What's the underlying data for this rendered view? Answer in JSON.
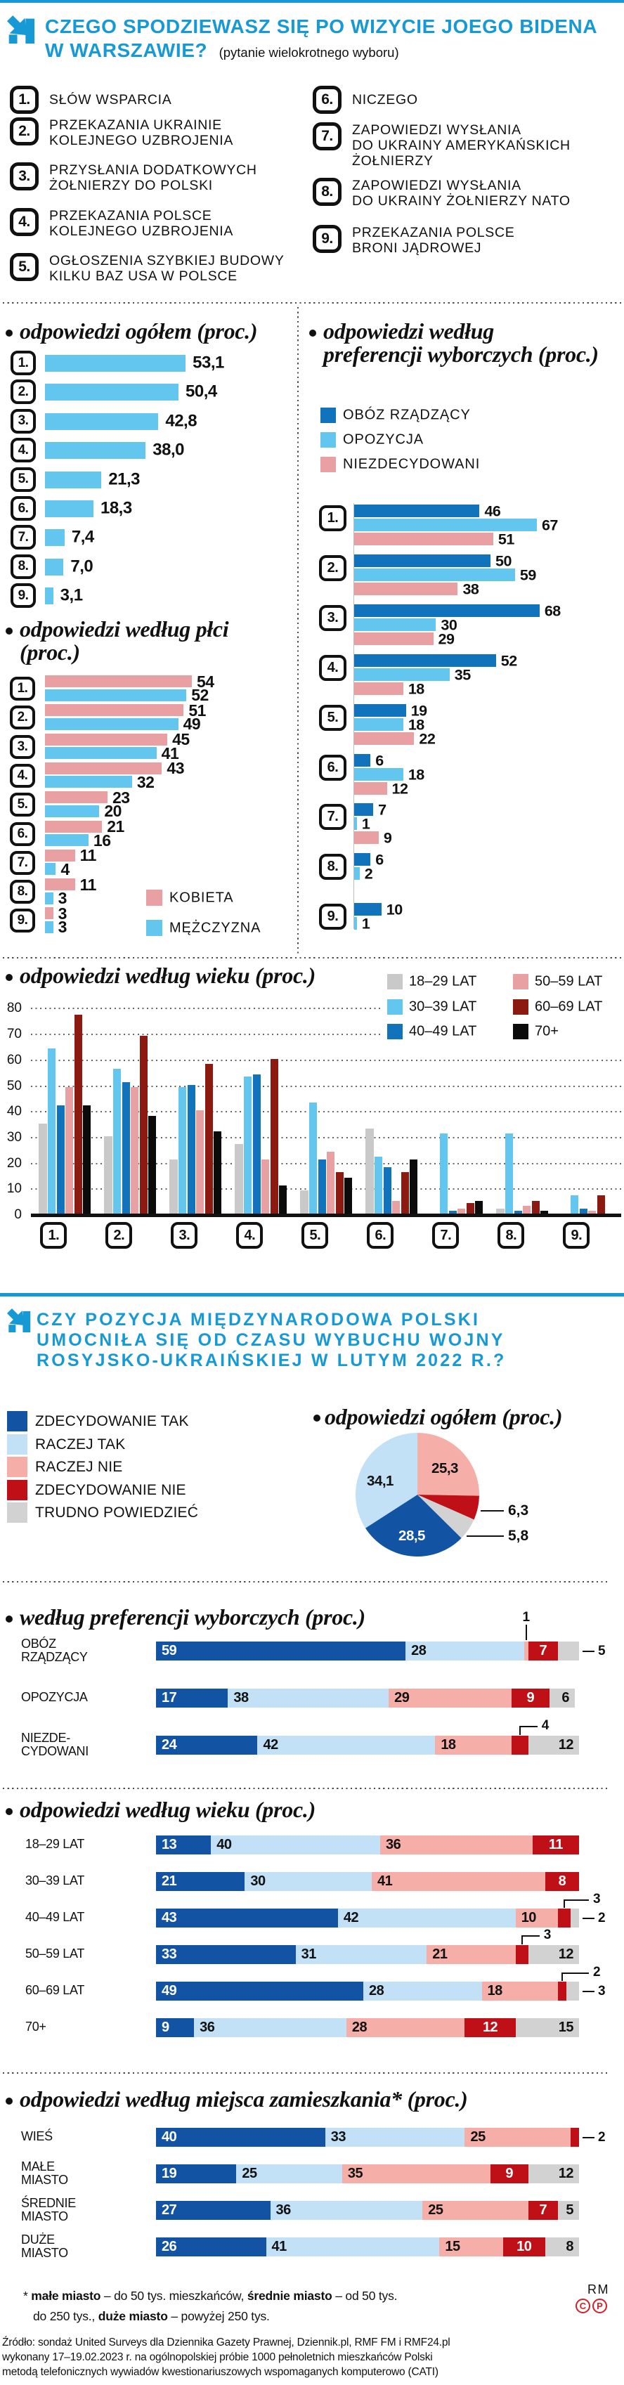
{
  "colors": {
    "brand": "#1799D6",
    "sky": "#63C6EE",
    "medblue": "#1173BB",
    "rose": "#E8A0A3",
    "navy": "#1254A3",
    "pale": "#C2E1F6",
    "salmon": "#F5AFA8",
    "red": "#BE1016",
    "maroon": "#8C1A10",
    "agegray": "#C9C9C9",
    "ltgray": "#D2D2D2",
    "black": "#0B0B0B"
  },
  "section1": {
    "title_line1": "CZEGO SPODZIEWASZ SIĘ PO WIZYCIE JOEGO BIDENA",
    "title_line2": "W WARSZAWIE?",
    "subtitle": "(pytanie wielokrotnego wyboru)",
    "options": [
      {
        "num": "1.",
        "lines": [
          "SŁÓW WSPARCIA"
        ]
      },
      {
        "num": "2.",
        "lines": [
          "PRZEKAZANIA UKRAINIE",
          "KOLEJNEGO UZBROJENIA"
        ]
      },
      {
        "num": "3.",
        "lines": [
          "PRZYSŁANIA DODATKOWYCH",
          "ŻOŁNIERZY DO POLSKI"
        ]
      },
      {
        "num": "4.",
        "lines": [
          "PRZEKAZANIA POLSCE",
          "KOLEJNEGO UZBROJENIA"
        ]
      },
      {
        "num": "5.",
        "lines": [
          "OGŁOSZENIA SZYBKIEJ BUDOWY",
          "KILKU BAZ USA W POLSCE"
        ]
      },
      {
        "num": "6.",
        "lines": [
          "NICZEGO"
        ]
      },
      {
        "num": "7.",
        "lines": [
          "ZAPOWIEDZI WYSŁANIA",
          "DO UKRAINY AMERYKAŃSKICH",
          "ŻOŁNIERZY"
        ]
      },
      {
        "num": "8.",
        "lines": [
          "ZAPOWIEDZI WYSŁANIA",
          "DO UKRAINY ŻOŁNIERZY NATO"
        ]
      },
      {
        "num": "9.",
        "lines": [
          "PRZEKAZANIA POLSCE",
          "BRONI JĄDROWEJ"
        ]
      }
    ]
  },
  "section2": {
    "title_lines": [
      "CZY POZYCJA MIĘDZYNARODOWA POLSKI",
      "UMOCNIŁA SIĘ OD CZASU WYBUCHU WOJNY",
      "ROSYJSKO-UKRAIŃSKIEJ W LUTYM 2022 R.?"
    ],
    "legend": [
      {
        "label": "ZDECYDOWANIE TAK",
        "color": "navy"
      },
      {
        "label": "RACZEJ TAK",
        "color": "pale"
      },
      {
        "label": "RACZEJ NIE",
        "color": "salmon"
      },
      {
        "label": "ZDECYDOWANIE NIE",
        "color": "red"
      },
      {
        "label": "TRUDNO POWIEDZIEĆ",
        "color": "ltgray"
      }
    ]
  },
  "chart_data": [
    {
      "id": "ogolem",
      "type": "bar",
      "orientation": "horizontal",
      "title": "odpowiedzi ogółem (proc.)",
      "categories": [
        "1.",
        "2.",
        "3.",
        "4.",
        "5.",
        "6.",
        "7.",
        "8.",
        "9."
      ],
      "values": [
        53.1,
        50.4,
        42.8,
        38.0,
        21.3,
        18.3,
        7.4,
        7.0,
        3.1
      ],
      "value_labels": [
        "53,1",
        "50,4",
        "42,8",
        "38,0",
        "21,3",
        "18,3",
        "7,4",
        "7,0",
        "3,1"
      ],
      "bar_color": "sky"
    },
    {
      "id": "plec",
      "type": "bar",
      "orientation": "horizontal",
      "title_lines": [
        "odpowiedzi według płci",
        "(proc.)"
      ],
      "categories": [
        "1.",
        "2.",
        "3.",
        "4.",
        "5.",
        "6.",
        "7.",
        "8.",
        "9."
      ],
      "series": [
        {
          "name": "KOBIETA",
          "color": "rose",
          "values": [
            54,
            51,
            45,
            43,
            23,
            21,
            11,
            11,
            3
          ]
        },
        {
          "name": "MĘŻCZYZNA",
          "color": "sky",
          "values": [
            52,
            49,
            41,
            32,
            20,
            16,
            4,
            3,
            3
          ]
        }
      ],
      "legend_position": "bottom-right"
    },
    {
      "id": "pref",
      "type": "bar",
      "orientation": "horizontal",
      "title_lines": [
        "odpowiedzi według",
        "preferencji wyborczych (proc.)"
      ],
      "categories": [
        "1.",
        "2.",
        "3.",
        "4.",
        "5.",
        "6.",
        "7.",
        "8.",
        "9."
      ],
      "series": [
        {
          "name": "OBÓZ RZĄDZĄCY",
          "color": "medblue",
          "values": [
            46,
            50,
            68,
            52,
            19,
            6,
            7,
            6,
            10
          ]
        },
        {
          "name": "OPOZYCJA",
          "color": "sky",
          "values": [
            67,
            59,
            30,
            35,
            18,
            18,
            1,
            2,
            1
          ]
        },
        {
          "name": "NIEZDECYDOWANI",
          "color": "rose",
          "values": [
            51,
            38,
            29,
            18,
            22,
            12,
            9,
            null,
            null
          ]
        }
      ],
      "legend_position": "top"
    },
    {
      "id": "wiek1",
      "type": "bar",
      "orientation": "vertical",
      "title": "odpowiedzi według wieku (proc.)",
      "categories": [
        "1.",
        "2.",
        "3.",
        "4.",
        "5.",
        "6.",
        "7.",
        "8.",
        "9."
      ],
      "ylim": [
        0,
        80
      ],
      "yticks": [
        0,
        10,
        20,
        30,
        40,
        50,
        60,
        70,
        80
      ],
      "series": [
        {
          "name": "18–29 LAT",
          "color": "agegray",
          "values": [
            35,
            30,
            21,
            27,
            9,
            33,
            0,
            2,
            0
          ]
        },
        {
          "name": "30–39 LAT",
          "color": "sky",
          "values": [
            64,
            56,
            49,
            53,
            43,
            22,
            31,
            31,
            7
          ]
        },
        {
          "name": "40–49 LAT",
          "color": "medblue",
          "values": [
            42,
            51,
            50,
            54,
            21,
            18,
            1,
            1,
            2
          ]
        },
        {
          "name": "50–59 LAT",
          "color": "rose",
          "values": [
            49,
            49,
            40,
            21,
            24,
            5,
            2,
            3,
            1
          ]
        },
        {
          "name": "60–69 LAT",
          "color": "maroon",
          "values": [
            77,
            69,
            58,
            60,
            16,
            16,
            4,
            5,
            7
          ]
        },
        {
          "name": "70+",
          "color": "black",
          "values": [
            42,
            38,
            32,
            11,
            14,
            21,
            5,
            1,
            0
          ]
        }
      ]
    },
    {
      "id": "pie",
      "type": "pie",
      "title": "odpowiedzi ogółem (proc.)",
      "slices": [
        {
          "label": "RACZEJ NIE",
          "value": 25.3,
          "text": "25,3",
          "color": "salmon",
          "label_pos": "in"
        },
        {
          "label": "ZDECYDOWANIE NIE",
          "value": 6.3,
          "text": "6,3",
          "color": "red",
          "label_pos": "out"
        },
        {
          "label": "TRUDNO POWIEDZIEĆ",
          "value": 5.8,
          "text": "5,8",
          "color": "ltgray",
          "label_pos": "out"
        },
        {
          "label": "ZDECYDOWANIE TAK",
          "value": 28.5,
          "text": "28,5",
          "color": "navy",
          "label_pos": "in-white"
        },
        {
          "label": "RACZEJ TAK",
          "value": 34.1,
          "text": "34,1",
          "color": "pale",
          "label_pos": "in"
        }
      ]
    },
    {
      "id": "pref2",
      "type": "stacked-bar",
      "title": "według preferencji wyborczych (proc.)",
      "segment_labels": [
        "ZDECYDOWANIE TAK",
        "RACZEJ TAK",
        "RACZEJ NIE",
        "ZDECYDOWANIE NIE",
        "TRUDNO POWIEDZIEĆ"
      ],
      "rows": [
        {
          "label_lines": [
            "OBÓZ",
            "RZĄDZĄCY"
          ],
          "values": [
            59,
            28,
            1,
            7,
            5
          ],
          "callouts": {
            "2": "up",
            "4": "right"
          }
        },
        {
          "label_lines": [
            "OPOZYCJA"
          ],
          "values": [
            17,
            38,
            29,
            9,
            6
          ]
        },
        {
          "label_lines": [
            "NIEZDE-",
            "CYDOWANI"
          ],
          "values": [
            24,
            42,
            18,
            4,
            12
          ],
          "callouts": {
            "3": "bend"
          }
        }
      ]
    },
    {
      "id": "wiek2",
      "type": "stacked-bar",
      "title": "odpowiedzi według wieku (proc.)",
      "segment_labels": [
        "ZDECYDOWANIE TAK",
        "RACZEJ TAK",
        "RACZEJ NIE",
        "ZDECYDOWANIE NIE",
        "TRUDNO POWIEDZIEĆ"
      ],
      "rows": [
        {
          "label_lines": [
            "18–29 LAT"
          ],
          "values": [
            13,
            40,
            36,
            11,
            0
          ]
        },
        {
          "label_lines": [
            "30–39 LAT"
          ],
          "values": [
            21,
            30,
            41,
            8,
            0
          ]
        },
        {
          "label_lines": [
            "40–49 LAT"
          ],
          "values": [
            43,
            42,
            10,
            3,
            2
          ],
          "callouts": {
            "3": "far",
            "4": "right"
          }
        },
        {
          "label_lines": [
            "50–59 LAT"
          ],
          "values": [
            33,
            31,
            21,
            3,
            12
          ],
          "callouts": {
            "3": "bend"
          }
        },
        {
          "label_lines": [
            "60–69 LAT"
          ],
          "values": [
            49,
            28,
            18,
            2,
            3
          ],
          "callouts": {
            "3": "far",
            "4": "right"
          }
        },
        {
          "label_lines": [
            "70+"
          ],
          "values": [
            9,
            36,
            28,
            12,
            15
          ]
        }
      ]
    },
    {
      "id": "miejsce",
      "type": "stacked-bar",
      "title": "odpowiedzi według miejsca zamieszkania* (proc.)",
      "segment_labels": [
        "ZDECYDOWANIE TAK",
        "RACZEJ TAK",
        "RACZEJ NIE",
        "ZDECYDOWANIE NIE",
        "TRUDNO POWIEDZIEĆ"
      ],
      "rows": [
        {
          "label_lines": [
            "WIEŚ"
          ],
          "values": [
            40,
            33,
            25,
            2,
            0
          ],
          "callouts": {
            "3": "right"
          }
        },
        {
          "label_lines": [
            "MAŁE",
            "MIASTO"
          ],
          "values": [
            19,
            25,
            35,
            9,
            12
          ]
        },
        {
          "label_lines": [
            "ŚREDNIE",
            "MIASTO"
          ],
          "values": [
            27,
            36,
            25,
            7,
            5
          ]
        },
        {
          "label_lines": [
            "DUŻE",
            "MIASTO"
          ],
          "values": [
            26,
            41,
            15,
            10,
            8
          ]
        }
      ]
    }
  ],
  "footnote": {
    "star": "*",
    "line1_parts": [
      {
        "t": "małe miasto",
        "b": true
      },
      {
        "t": " – do 50 tys. mieszkańców,  ",
        "b": false
      },
      {
        "t": "średnie miasto",
        "b": true
      },
      {
        "t": " – od 50 tys.",
        "b": false
      }
    ],
    "line2_parts": [
      {
        "t": "do 250 tys., ",
        "b": false
      },
      {
        "t": "duże miasto",
        "b": true
      },
      {
        "t": " – powyżej 250 tys.",
        "b": false
      }
    ]
  },
  "credits": {
    "rm": "RM",
    "c": "C",
    "p": "P"
  },
  "source_lines": [
    "Źródło: sondaż United Surveys dla Dziennika Gazety Prawnej, Dziennik.pl, RMF FM i RMF24.pl",
    "wykonany 17–19.02.2023 r. na ogólnopolskiej próbie 1000 pełnoletnich mieszkańców Polski",
    "metodą telefonicznych wywiadów kwestionariuszowych wspomaganych komputerowo (CATI)"
  ]
}
